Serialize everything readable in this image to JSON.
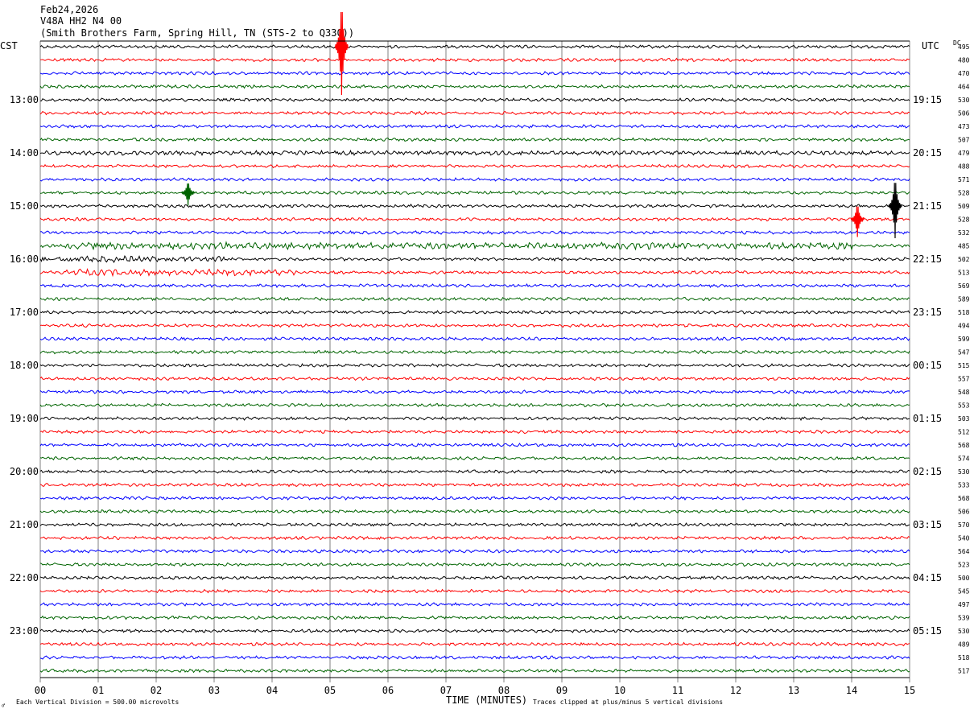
{
  "header": {
    "date": "Feb24,2026",
    "channel": "V48A HH2 N4 00",
    "station": "(Smith Brothers Farm, Spring Hill, TN (STS-2 to Q330))"
  },
  "labels": {
    "left_tz": "CST",
    "right_tz": "UTC",
    "dc_label": "DC",
    "xlabel": "TIME (MINUTES)",
    "scale_note": "Each Vertical Division =  500.00 microvolts",
    "clip_note": "Traces clipped at plus/minus 5 vertical divisions",
    "corner_mark": "♂"
  },
  "colors": {
    "cycle": [
      "#000000",
      "#ff0000",
      "#0000ff",
      "#006400"
    ],
    "grid": "#808080"
  },
  "chart_data": {
    "type": "line",
    "title": "V48A HH2 N4 00",
    "xlabel": "TIME (MINUTES)",
    "xlim": [
      0,
      15
    ],
    "x_ticks": [
      "00",
      "01",
      "02",
      "03",
      "04",
      "05",
      "06",
      "07",
      "08",
      "09",
      "10",
      "11",
      "12",
      "13",
      "14",
      "15"
    ],
    "row_minutes": 15,
    "row_count": 48,
    "left_hour_labels": [
      "13:00",
      "14:00",
      "15:00",
      "16:00",
      "17:00",
      "18:00",
      "19:00",
      "20:00",
      "21:00",
      "22:00",
      "23:00"
    ],
    "right_hour_labels": [
      "19:15",
      "20:15",
      "21:15",
      "22:15",
      "23:15",
      "00:15",
      "01:15",
      "02:15",
      "03:15",
      "04:15",
      "05:15"
    ],
    "dc_offsets": [
      495,
      480,
      470,
      464,
      530,
      506,
      473,
      507,
      479,
      488,
      571,
      528,
      509,
      528,
      532,
      485,
      502,
      513,
      569,
      589,
      518,
      494,
      599,
      547,
      515,
      557,
      548,
      553,
      503,
      512,
      568,
      574,
      530,
      533,
      568,
      506,
      570,
      540,
      564,
      523,
      500,
      545,
      497,
      539,
      530,
      489,
      518,
      517
    ],
    "events": [
      {
        "row": 0,
        "minute": 5.2,
        "amplitude": 60,
        "color": "red"
      },
      {
        "row": 11,
        "minute": 2.55,
        "amplitude": 16,
        "color": "green"
      },
      {
        "row": 12,
        "minute": 14.75,
        "amplitude": 40,
        "color": "black"
      },
      {
        "row": 13,
        "minute": 14.1,
        "amplitude": 22,
        "color": "red"
      }
    ],
    "noise_bursts": [
      {
        "row": 15,
        "start": 0.4,
        "end": 14.0,
        "level": 2.2
      },
      {
        "row": 16,
        "start": 0.0,
        "end": 3.2,
        "level": 2.0
      },
      {
        "row": 17,
        "start": 0.4,
        "end": 4.4,
        "level": 2.0
      },
      {
        "row": 8,
        "start": 0.0,
        "end": 15.0,
        "level": 1.4
      }
    ]
  }
}
